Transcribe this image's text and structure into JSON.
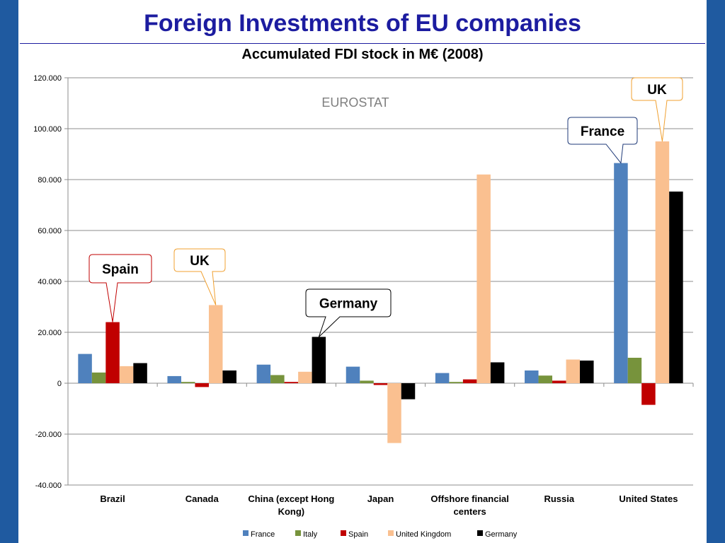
{
  "slide": {
    "title": "Foreign Investments of EU companies"
  },
  "chart_data": {
    "type": "bar",
    "title": "Accumulated FDI stock in M€ (2008)",
    "watermark": "EUROSTAT",
    "categories": [
      "Brazil",
      "Canada",
      "China (except Hong Kong)",
      "Japan",
      "Offshore financial centers",
      "Russia",
      "United States"
    ],
    "category_lines": [
      [
        "Brazil"
      ],
      [
        "Canada"
      ],
      [
        "China (except Hong",
        "Kong)"
      ],
      [
        "Japan"
      ],
      [
        "Offshore financial",
        "centers"
      ],
      [
        "Russia"
      ],
      [
        "United States"
      ]
    ],
    "series": [
      {
        "name": "France",
        "color": "#4f81bd",
        "values": [
          11500,
          2800,
          7300,
          6500,
          4000,
          5000,
          86500
        ]
      },
      {
        "name": "Italy",
        "color": "#77933c",
        "values": [
          4200,
          500,
          3200,
          1000,
          500,
          3000,
          10000
        ]
      },
      {
        "name": "Spain",
        "color": "#c00000",
        "values": [
          24000,
          -1500,
          500,
          -700,
          1500,
          1000,
          -8500
        ]
      },
      {
        "name": "United Kingdom",
        "color": "#fac090",
        "values": [
          6700,
          30700,
          4500,
          -23500,
          82000,
          9300,
          95000
        ]
      },
      {
        "name": "Germany",
        "color": "#000000",
        "values": [
          7900,
          5000,
          18200,
          -6300,
          8200,
          8900,
          75300
        ]
      }
    ],
    "ylim": [
      -40000,
      120000
    ],
    "yticks": [
      -40000,
      -20000,
      0,
      20000,
      40000,
      60000,
      80000,
      100000,
      120000
    ],
    "ytick_labels": [
      "-40.000",
      "-20.000",
      "0",
      "20.000",
      "40.000",
      "60.000",
      "80.000",
      "100.000",
      "120.000"
    ],
    "grid": true,
    "legend_position": "bottom",
    "callouts": [
      {
        "text": "Spain",
        "category": "Brazil",
        "series": "Spain",
        "border": "#c00000"
      },
      {
        "text": "UK",
        "category": "Canada",
        "series": "United Kingdom",
        "border": "#f0a030"
      },
      {
        "text": "Germany",
        "category": "China (except Hong Kong)",
        "series": "Germany",
        "border": "#000000"
      },
      {
        "text": "France",
        "category": "United States",
        "series": "France",
        "border": "#1f3a78"
      },
      {
        "text": "UK",
        "category": "United States",
        "series": "United Kingdom",
        "border": "#f0a030"
      }
    ]
  }
}
